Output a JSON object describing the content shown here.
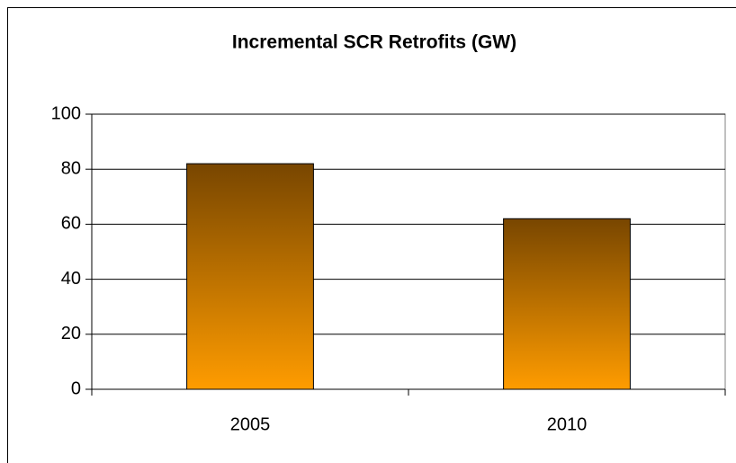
{
  "chart_data": {
    "type": "bar",
    "title": "Incremental SCR Retrofits (GW)",
    "categories": [
      "2005",
      "2010"
    ],
    "values": [
      82,
      62
    ],
    "gradient": [
      "#784600",
      "#ff9c00"
    ],
    "ylim": [
      0,
      100
    ],
    "yticks": [
      0,
      20,
      40,
      60,
      80,
      100
    ],
    "grid": true
  }
}
